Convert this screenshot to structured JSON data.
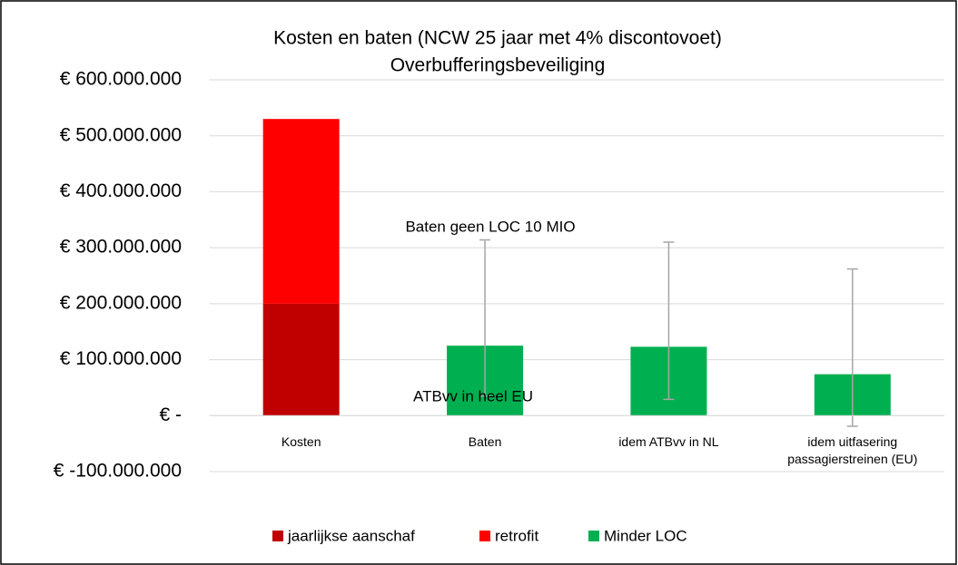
{
  "chart_data": {
    "type": "bar",
    "stacked": true,
    "title": "Kosten en baten (NCW 25 jaar met 4% discontovoet)",
    "subtitle": "Overbufferingsbeveiliging",
    "categories": [
      "Kosten",
      "Baten",
      "idem ATBvv in NL",
      "idem uitfasering passagierstreinen (EU)"
    ],
    "series": [
      {
        "name": "jaarlijkse aanschaf",
        "color": "#c00000",
        "values": [
          200000000,
          null,
          null,
          null
        ]
      },
      {
        "name": "retrofit",
        "color": "#ff0000",
        "values": [
          330000000,
          null,
          null,
          null
        ]
      },
      {
        "name": "Minder LOC",
        "color": "#00b050",
        "values": [
          null,
          125000000,
          123000000,
          74000000
        ],
        "errors_plus": [
          null,
          189000000,
          187000000,
          188000000
        ],
        "errors_minus": [
          null,
          90000000,
          94000000,
          93000000
        ]
      }
    ],
    "error_color": "#a6a6a6",
    "ylim": [
      -100000000,
      600000000
    ],
    "yticks": [
      {
        "value": -100000000,
        "label": "€ -100.000.000"
      },
      {
        "value": 0,
        "label": "€ -"
      },
      {
        "value": 100000000,
        "label": "€ 100.000.000"
      },
      {
        "value": 200000000,
        "label": "€ 200.000.000"
      },
      {
        "value": 300000000,
        "label": "€ 300.000.000"
      },
      {
        "value": 400000000,
        "label": "€ 400.000.000"
      },
      {
        "value": 500000000,
        "label": "€ 500.000.000"
      },
      {
        "value": 600000000,
        "label": "€ 600.000.000"
      }
    ],
    "grid": true,
    "legend": "bottom",
    "annotations": [
      "Baten geen LOC 10 MIO",
      "ATBvv in heel EU"
    ]
  }
}
